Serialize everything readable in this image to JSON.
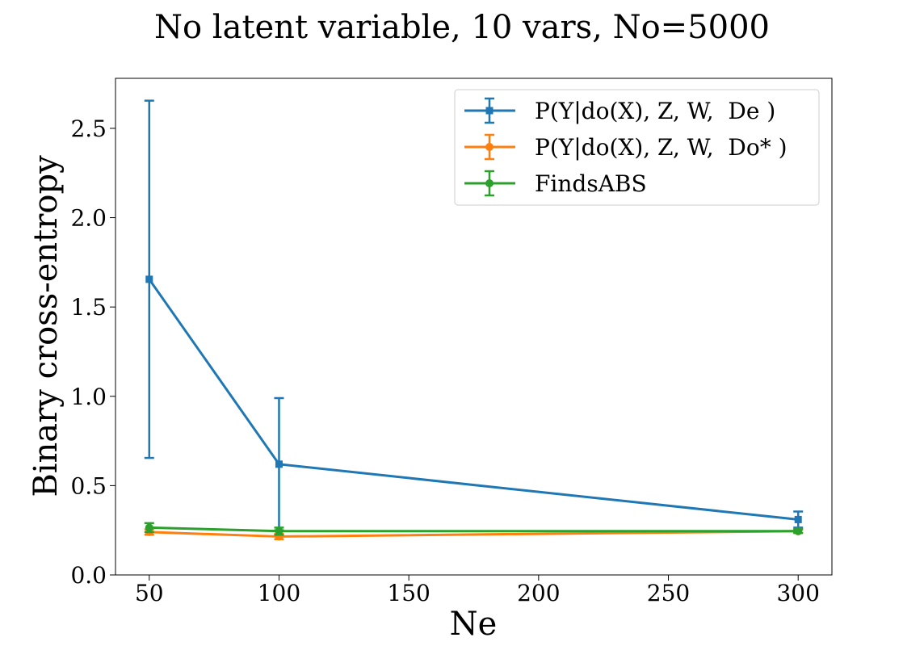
{
  "chart_data": {
    "type": "line",
    "title": "No latent variable, 10 vars, No=5000",
    "xlabel": "Ne",
    "ylabel": "Binary cross-entropy",
    "x": [
      50,
      100,
      300
    ],
    "xlim": [
      37,
      313
    ],
    "ylim": [
      0.0,
      2.78
    ],
    "xticks": [
      50,
      100,
      150,
      200,
      250,
      300
    ],
    "yticks": [
      0.0,
      0.5,
      1.0,
      1.5,
      2.0,
      2.5
    ],
    "xtick_labels": [
      "50",
      "100",
      "150",
      "200",
      "250",
      "300"
    ],
    "ytick_labels": [
      "0.0",
      "0.5",
      "1.0",
      "1.5",
      "2.0",
      "2.5"
    ],
    "grid": false,
    "legend_position": "top-right",
    "series": [
      {
        "name": "P(Y|do(X), Z, W,  De )",
        "color": "#1f77b4",
        "marker": "square",
        "values": [
          1.655,
          0.62,
          0.31
        ],
        "errors": [
          1.0,
          0.37,
          0.045
        ]
      },
      {
        "name": "P(Y|do(X), Z, W,  Do* )",
        "color": "#ff7f0e",
        "marker": "circle",
        "values": [
          0.24,
          0.215,
          0.245
        ],
        "errors": [
          0.015,
          0.015,
          0.01
        ]
      },
      {
        "name": "FindsABS",
        "color": "#2ca02c",
        "marker": "circle",
        "values": [
          0.265,
          0.245,
          0.245
        ],
        "errors": [
          0.025,
          0.02,
          0.01
        ]
      }
    ]
  }
}
